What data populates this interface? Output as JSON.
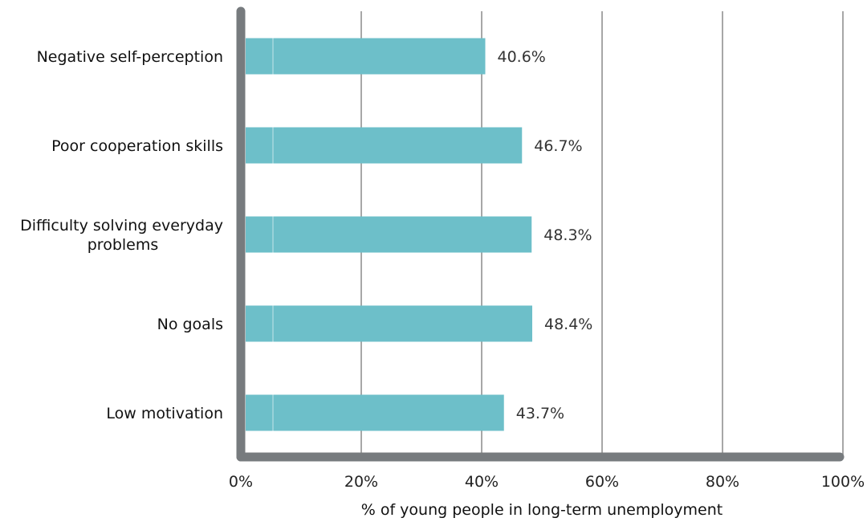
{
  "chart_data": {
    "type": "bar",
    "orientation": "horizontal",
    "categories": [
      [
        "Negative self-perception"
      ],
      [
        "Poor cooperation skills"
      ],
      [
        "Difficulty solving everyday",
        "problems"
      ],
      [
        "No goals"
      ],
      [
        "Low motivation"
      ]
    ],
    "values": [
      40.6,
      46.7,
      48.3,
      48.4,
      43.7
    ],
    "value_labels": [
      "40.6%",
      "46.7%",
      "48.3%",
      "48.4%",
      "43.7%"
    ],
    "xlabel": "% of young people in long-term unemployment",
    "xlim": [
      0,
      100
    ],
    "xticks": [
      0,
      20,
      40,
      60,
      80,
      100
    ],
    "xtick_labels": [
      "0%",
      "20%",
      "40%",
      "60%",
      "80%",
      "100%"
    ],
    "grid": "vertical",
    "colors": {
      "bar": "#6dbfc9",
      "axis": "#777b7e",
      "grid": "#8a8a8a"
    }
  }
}
